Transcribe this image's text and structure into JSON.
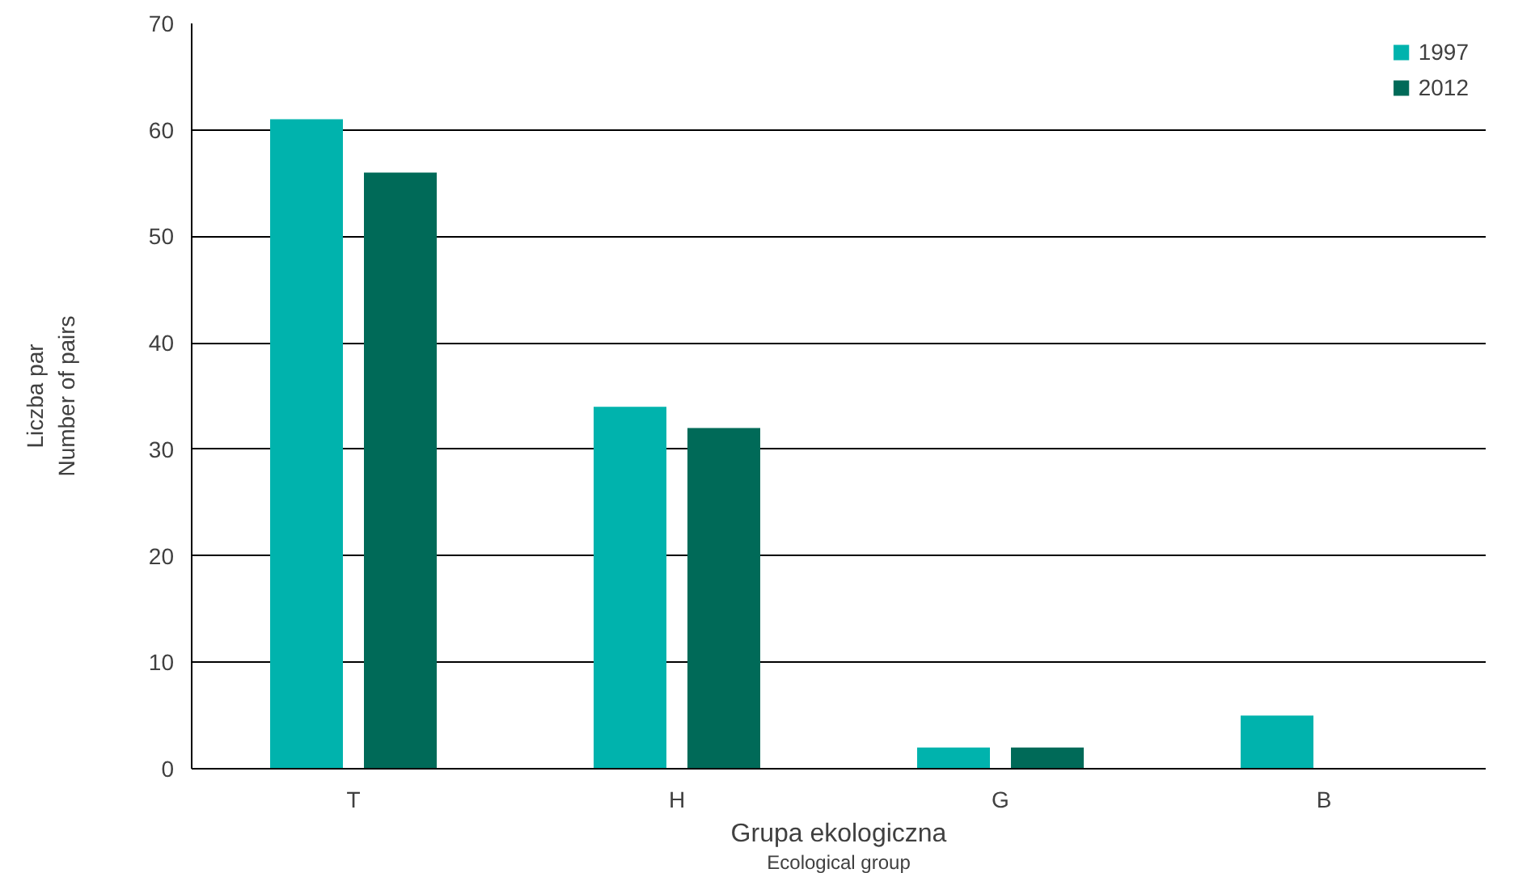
{
  "chart_data": {
    "type": "bar",
    "categories": [
      "T",
      "H",
      "G",
      "B"
    ],
    "series": [
      {
        "name": "1997",
        "color": "#00b3ad",
        "values": [
          61,
          34,
          2,
          5
        ]
      },
      {
        "name": "2012",
        "color": "#006a58",
        "values": [
          56,
          32,
          2,
          0
        ]
      }
    ],
    "xlabel": "Grupa ekologiczna\nEcological group",
    "ylabel": "Liczba par\nNumber of pairs",
    "ylim": [
      0,
      70
    ],
    "yticks": [
      0,
      10,
      20,
      30,
      40,
      50,
      60,
      70
    ],
    "grid": "y",
    "legend": "top right"
  }
}
